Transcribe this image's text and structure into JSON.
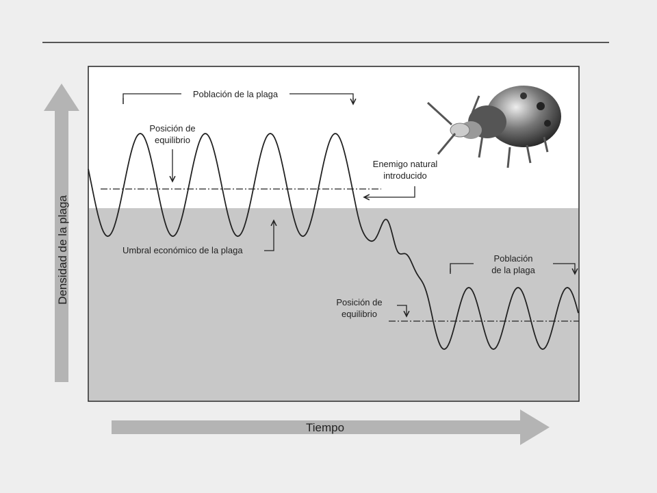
{
  "top_population": "Población de la plaga",
  "top_equilibrium": [
    "Posición de",
    "equilibrio"
  ],
  "natural_enemy": [
    "Enemigo natural",
    "introducido"
  ],
  "threshold": "Umbral económico de la plaga",
  "bottom_equilibrium": [
    "Posición de",
    "equilibrio"
  ],
  "bottom_population": [
    "Población",
    "de la plaga"
  ],
  "y_axis": "Densidad de la plaga",
  "x_axis": "Tiempo"
}
